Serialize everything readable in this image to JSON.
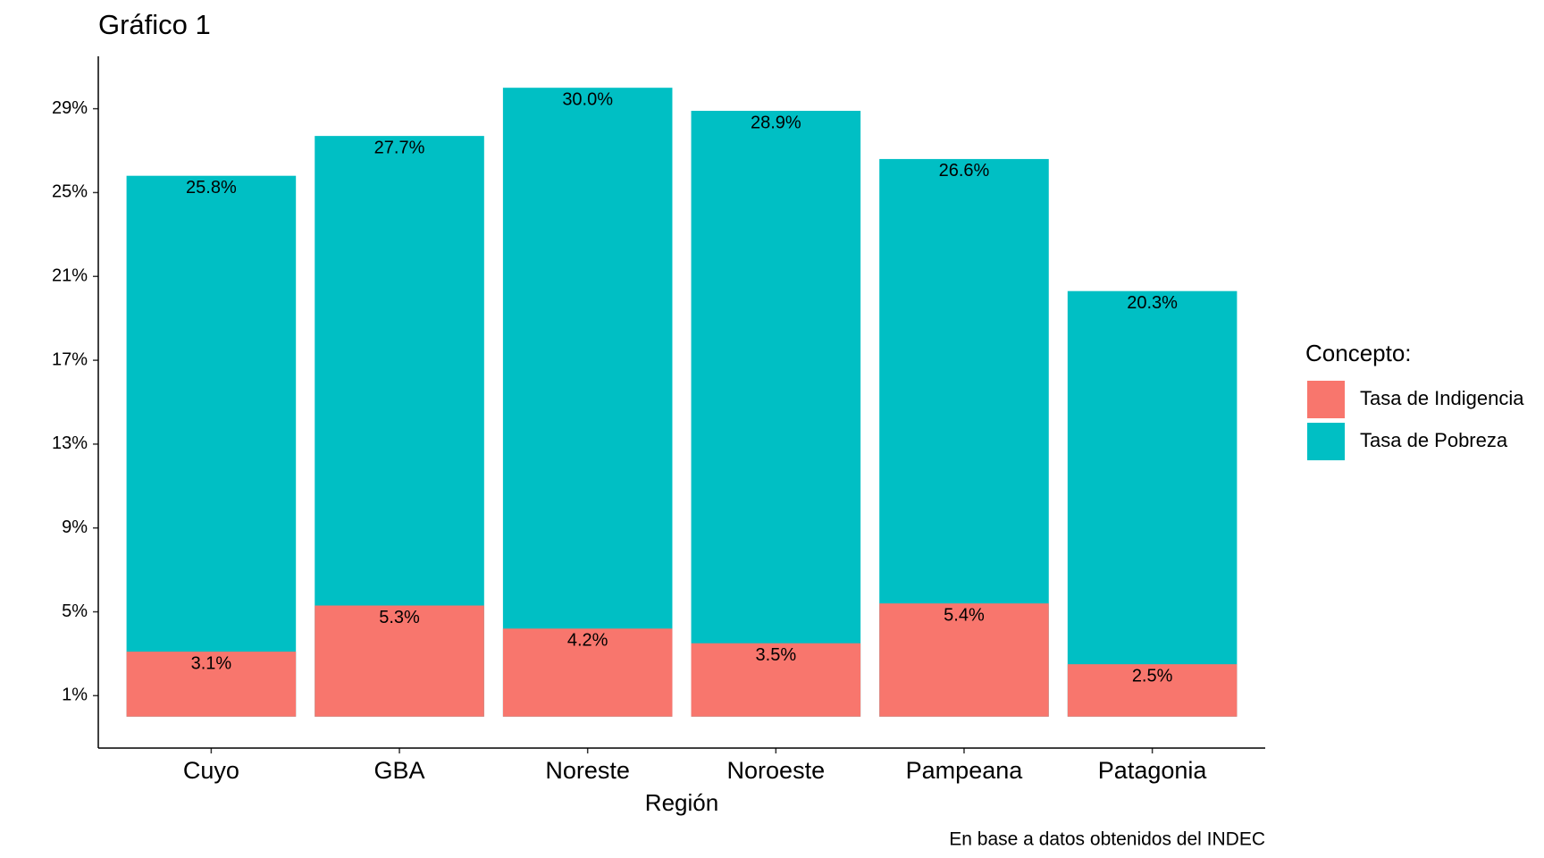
{
  "chart_data": {
    "type": "bar",
    "title": "Gráfico 1",
    "x_label": "Región",
    "caption": "En base a datos obtenidos del INDEC",
    "legend_title": "Concepto:",
    "legend_position": "right",
    "categories": [
      "Cuyo",
      "GBA",
      "Noreste",
      "Noroeste",
      "Pampeana",
      "Patagonia"
    ],
    "series": [
      {
        "name": "Tasa de Indigencia",
        "color": "#F8766D",
        "values": [
          3.1,
          5.3,
          4.2,
          3.5,
          5.4,
          2.5
        ],
        "value_labels": [
          "3.1%",
          "5.3%",
          "4.2%",
          "3.5%",
          "5.4%",
          "2.5%"
        ]
      },
      {
        "name": "Tasa de Pobreza",
        "color": "#00BFC4",
        "values": [
          25.8,
          27.7,
          30.0,
          28.9,
          26.6,
          20.3
        ],
        "value_labels": [
          "25.8%",
          "27.7%",
          "30.0%",
          "28.9%",
          "26.6%",
          "20.3%"
        ]
      }
    ],
    "ylim": [
      -1.5,
      31.5
    ],
    "yticks": [
      {
        "value": 1,
        "label": "1%"
      },
      {
        "value": 5,
        "label": "5%"
      },
      {
        "value": 9,
        "label": "9%"
      },
      {
        "value": 13,
        "label": "13%"
      },
      {
        "value": 17,
        "label": "17%"
      },
      {
        "value": 21,
        "label": "21%"
      },
      {
        "value": 25,
        "label": "25%"
      },
      {
        "value": 29,
        "label": "29%"
      }
    ],
    "grid": false
  }
}
